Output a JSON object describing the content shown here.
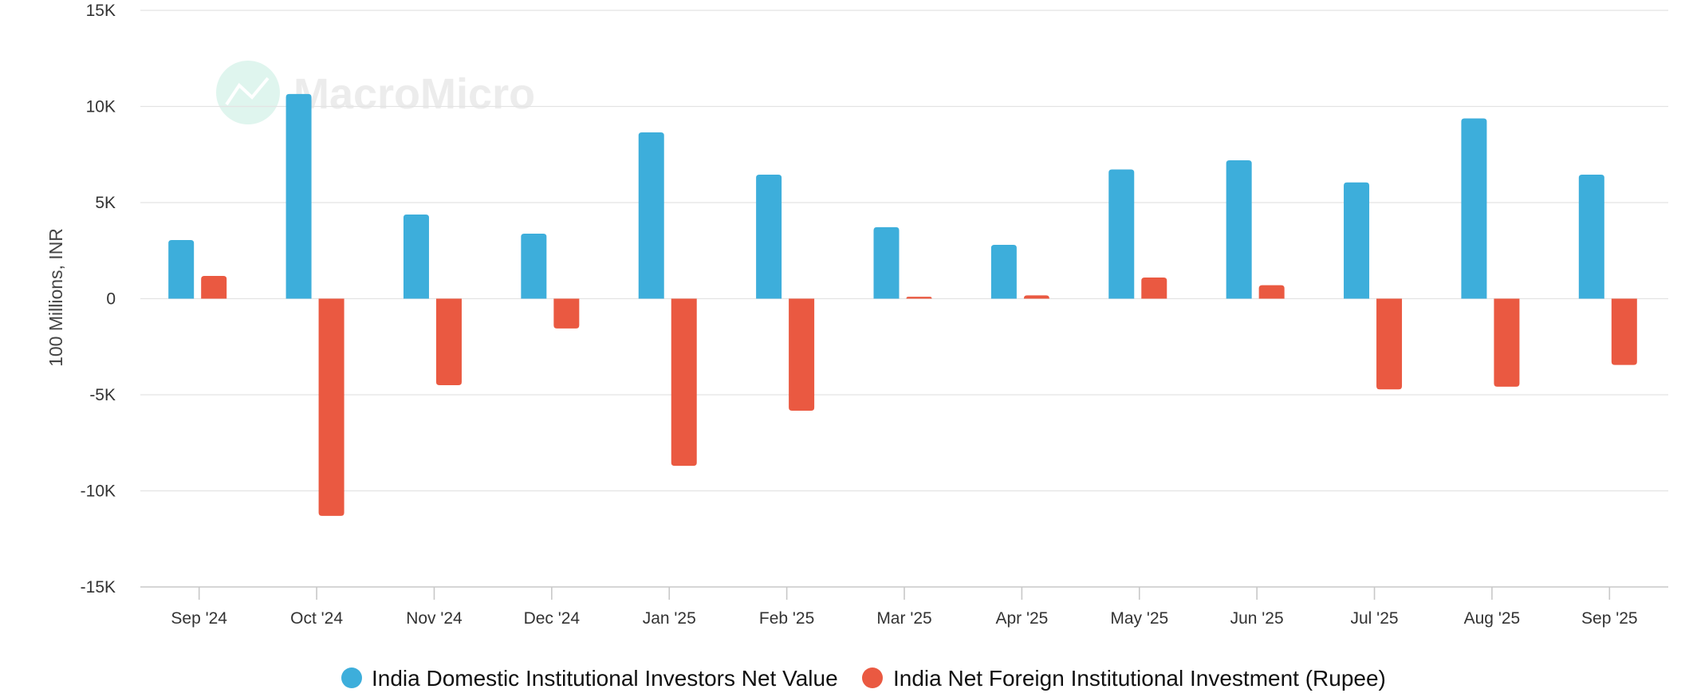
{
  "chart_data": {
    "type": "bar",
    "title": "",
    "xlabel": "",
    "ylabel": "100 Millions, INR",
    "ylim": [
      -15000,
      15000
    ],
    "yticks": [
      15000,
      10000,
      5000,
      0,
      -5000,
      -10000,
      -15000
    ],
    "ytick_labels": [
      "15K",
      "10K",
      "5K",
      "0",
      "-5K",
      "-10K",
      "-15K"
    ],
    "grid": true,
    "legend_position": "bottom",
    "categories": [
      "Sep '24",
      "Oct '24",
      "Nov '24",
      "Dec '24",
      "Jan '25",
      "Feb '25",
      "Mar '25",
      "Apr '25",
      "May '25",
      "Jun '25",
      "Jul '25",
      "Aug '25",
      "Sep '25"
    ],
    "series": [
      {
        "name": "India Domestic Institutional Investors Net Value",
        "color": "#3daedb",
        "values": [
          3050,
          10650,
          4380,
          3380,
          8650,
          6450,
          3720,
          2800,
          6720,
          7200,
          6050,
          9380,
          6450
        ]
      },
      {
        "name": "India Net Foreign Institutional Investment (Rupee)",
        "color": "#ea5941",
        "values": [
          1180,
          -11300,
          -4500,
          -1550,
          -8700,
          -5830,
          100,
          170,
          1100,
          700,
          -4720,
          -4580,
          -3450
        ]
      }
    ]
  },
  "watermark": {
    "text": "MacroMicro",
    "icon": "chart-logo-icon"
  }
}
